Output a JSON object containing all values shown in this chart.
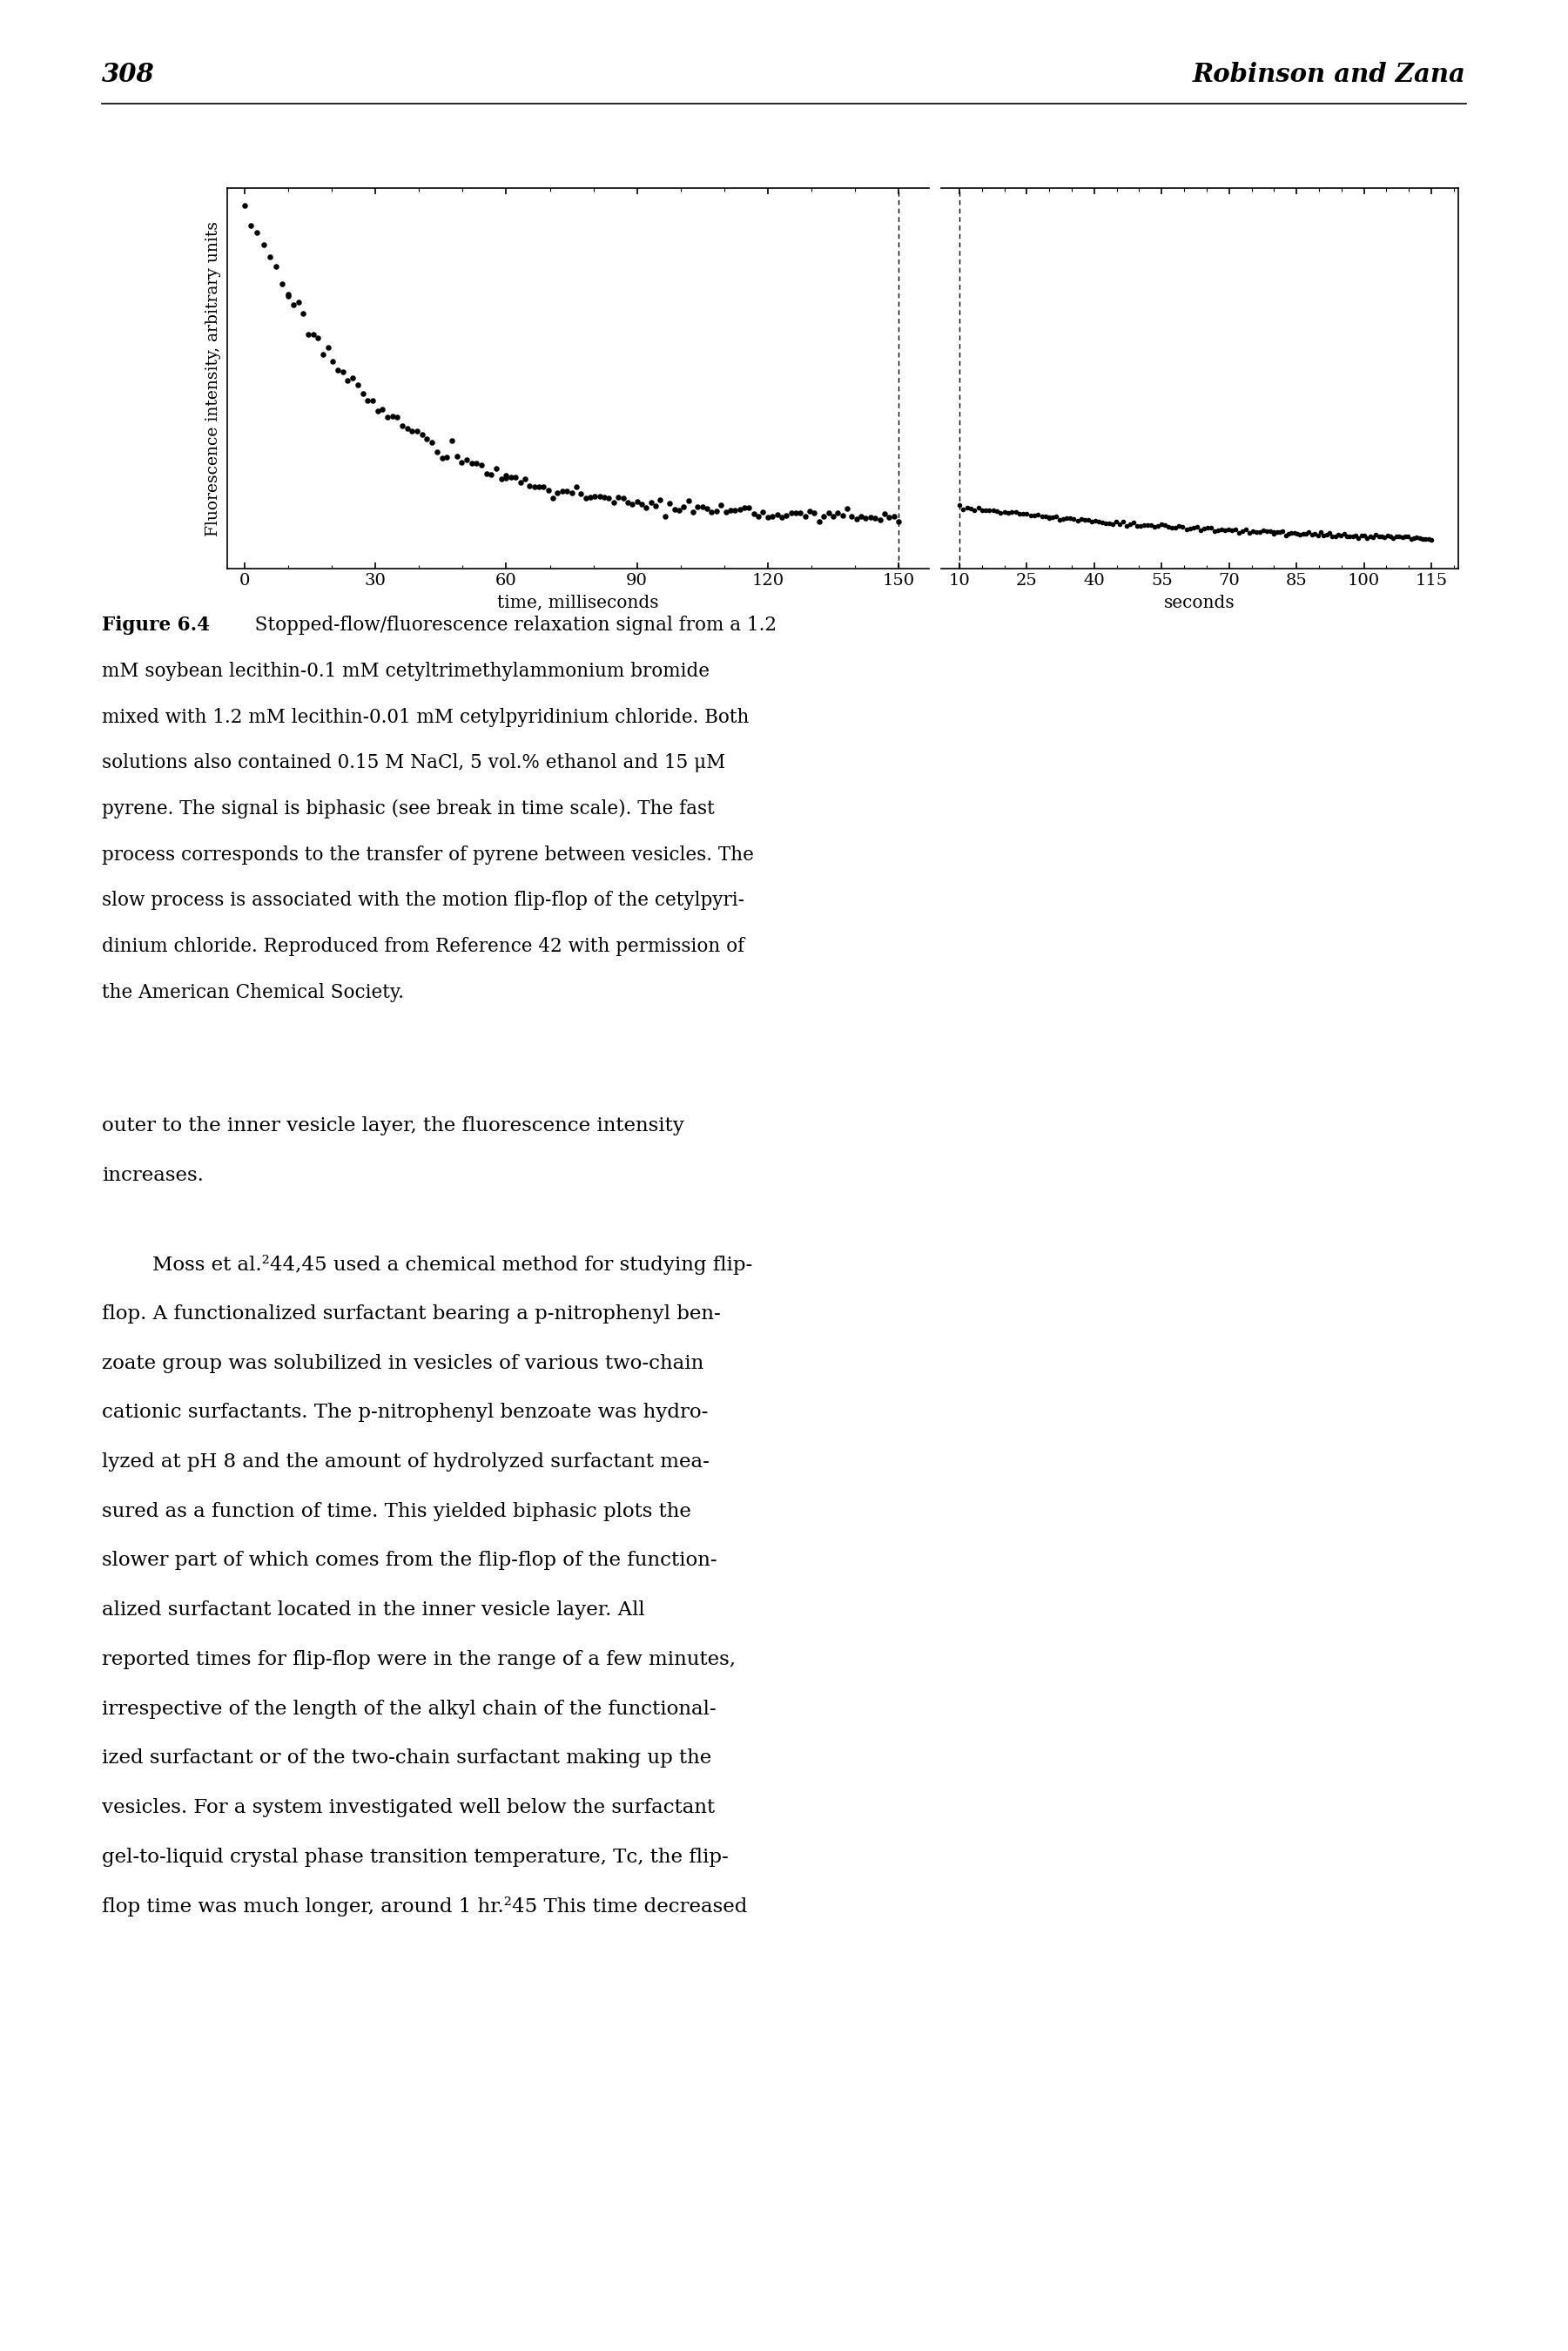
{
  "page_number": "308",
  "header_right": "Robinson and Zana",
  "fig_label": "Figure 6.4",
  "fig_caption_rest": "  Stopped-flow/fluorescence relaxation signal from a 1.2\nmM soybean lecithin-0.1 mM cetyltrimethylammonium bromide\nmixed with 1.2 mM lecithin-0.01 mM cetylpyridinium chloride. Both\nsolutions also contained 0.15 M NaCl, 5 vol.% ethanol and 15 μM\npyrene. The signal is biphasic (see break in time scale). The fast\nprocess corresponds to the transfer of pyrene between vesicles. The\nslow process is associated with the motion flip-flop of the cetylpyri-\ndinium chloride. Reproduced from Reference 42 with permission of\nthe American Chemical Society.",
  "ylabel": "Fluorescence intensity, arbitrary units",
  "xlabel_left": "time, milliseconds",
  "xlabel_right": "seconds",
  "xticks_left": [
    0,
    30,
    60,
    90,
    120,
    150
  ],
  "xticks_right": [
    10,
    25,
    40,
    55,
    70,
    85,
    100,
    115
  ],
  "body_para1_line1": "outer to the inner vesicle layer, the fluorescence intensity",
  "body_para1_line2": "increases.",
  "body_para2": "        Moss et al.²44,45 used a chemical method for studying flip-\nflop. A functionalized surfactant bearing a p-nitrophenyl ben-\nzoate group was solubilized in vesicles of various two-chain\ncationic surfactants. The p-nitrophenyl benzoate was hydro-\nlyzed at pH 8 and the amount of hydrolyzed surfactant mea-\nsured as a function of time. This yielded biphasic plots the\nslower part of which comes from the flip-flop of the function-\nalized surfactant located in the inner vesicle layer. All\nreported times for flip-flop were in the range of a few minutes,\nirrespective of the length of the alkyl chain of the functional-\nized surfactant or of the two-chain surfactant making up the\nvesicles. For a system investigated well below the surfactant\ngel-to-liquid crystal phase transition temperature, Tᴄ, the flip-\nflop time was much longer, around 1 hr.²45 This time decreased",
  "background_color": "#ffffff",
  "dot_color": "#000000"
}
